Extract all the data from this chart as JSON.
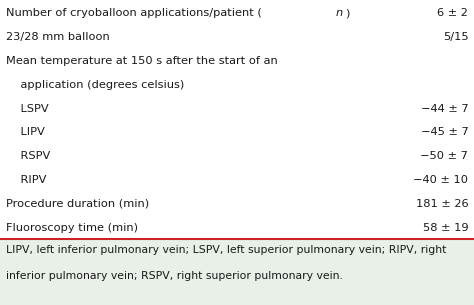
{
  "rows": [
    {
      "label": "Number of cryoballoon applications/patient (",
      "italic": "n",
      "label_after": ")",
      "value": "6 ± 2",
      "indent": 0
    },
    {
      "label": "23/28 mm balloon",
      "italic": "",
      "label_after": "",
      "value": "5/15",
      "indent": 0
    },
    {
      "label": "Mean temperature at 150 s after the start of an",
      "italic": "",
      "label_after": "",
      "value": "",
      "indent": 0
    },
    {
      "label": "    application (degrees celsius)",
      "italic": "",
      "label_after": "",
      "value": "",
      "indent": 0
    },
    {
      "label": "    LSPV",
      "italic": "",
      "label_after": "",
      "value": "−44 ± 7",
      "indent": 0
    },
    {
      "label": "    LIPV",
      "italic": "",
      "label_after": "",
      "value": "−45 ± 7",
      "indent": 0
    },
    {
      "label": "    RSPV",
      "italic": "",
      "label_after": "",
      "value": "−50 ± 7",
      "indent": 0
    },
    {
      "label": "    RIPV",
      "italic": "",
      "label_after": "",
      "value": "−40 ± 10",
      "indent": 0
    },
    {
      "label": "Procedure duration (min)",
      "italic": "",
      "label_after": "",
      "value": "181 ± 26",
      "indent": 0
    },
    {
      "label": "Fluoroscopy time (min)",
      "italic": "",
      "label_after": "",
      "value": "58 ± 19",
      "indent": 0
    }
  ],
  "foot_line1": "LIPV, left inferior pulmonary vein; LSPV, left superior pulmonary vein; RIPV, right",
  "foot_line2": "inferior pulmonary vein; RSPV, right superior pulmonary vein.",
  "table_bg": "#ffffff",
  "foot_bg": "#e8f0e8",
  "sep_color": "#cc2222",
  "text_color": "#1a1a1a",
  "font_size": 8.2,
  "foot_font_size": 7.8,
  "fig_width": 4.74,
  "fig_height": 3.05,
  "dpi": 100
}
